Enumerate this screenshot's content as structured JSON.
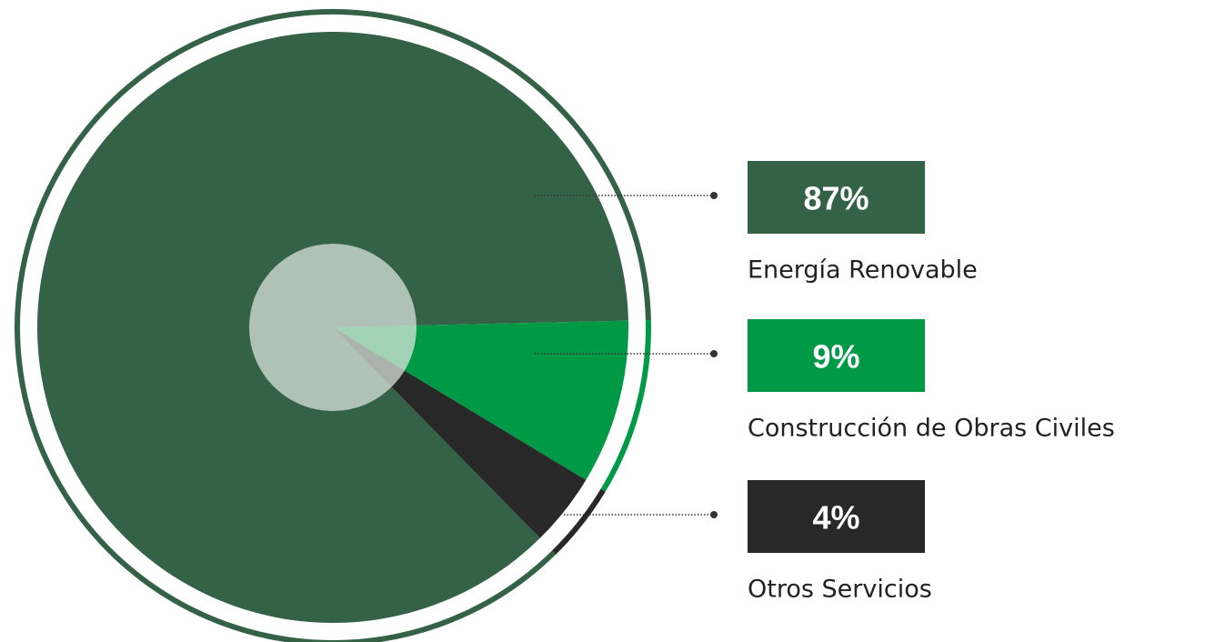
{
  "chart_data": {
    "type": "pie",
    "categories": [
      "Energía Renovable",
      "Construcción de Obras Civiles",
      "Otros Servicios"
    ],
    "values": [
      87,
      9,
      4
    ],
    "value_labels": [
      "87%",
      "9%",
      "4%"
    ],
    "colors": [
      "#346246",
      "#009a46",
      "#282828"
    ]
  }
}
